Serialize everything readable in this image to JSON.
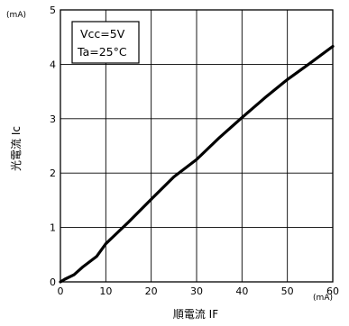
{
  "chart_data": {
    "type": "line",
    "xlabel": "順電流 IF",
    "ylabel": "光電流 Ic",
    "x_unit": "(mA)",
    "y_unit": "(mA)",
    "xlim": [
      0,
      60
    ],
    "ylim": [
      0,
      5
    ],
    "x_ticks": [
      "0",
      "10",
      "20",
      "30",
      "40",
      "50",
      "60"
    ],
    "y_ticks": [
      "0",
      "1",
      "2",
      "3",
      "4",
      "5"
    ],
    "grid": true,
    "conditions": [
      "Vcc=5V",
      "Ta=25°C"
    ],
    "series": [
      {
        "x": [
          0,
          1,
          3,
          5,
          8,
          10,
          15,
          20,
          25,
          30,
          35,
          40,
          45,
          50,
          55,
          60
        ],
        "y": [
          0,
          0.05,
          0.13,
          0.28,
          0.47,
          0.7,
          1.1,
          1.52,
          1.93,
          2.25,
          2.65,
          3.02,
          3.38,
          3.72,
          4.02,
          4.33
        ]
      }
    ]
  }
}
